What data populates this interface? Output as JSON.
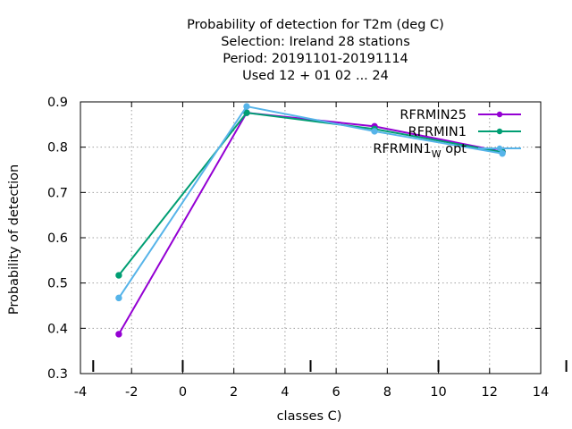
{
  "chart_data": {
    "type": "line",
    "title_lines": [
      "Probability of detection  for T2m (deg C)",
      "Selection: Ireland     28 stations",
      "Period: 20191101-20191114",
      "Used  12 + 01 02 ... 24"
    ],
    "xlabel": "classes C)",
    "ylabel": "Probability of detection",
    "xlim": [
      -4,
      14
    ],
    "ylim": [
      0.3,
      0.9
    ],
    "xticks": [
      -4,
      -2,
      0,
      2,
      4,
      6,
      8,
      10,
      12,
      14
    ],
    "yticks": [
      0.3,
      0.4,
      0.5,
      0.6,
      0.7,
      0.8,
      0.9
    ],
    "grid": true,
    "legend_position": "top-right",
    "series": [
      {
        "name": "RFRMIN25",
        "color": "#9400d3",
        "x": [
          -2.5,
          2.5,
          7.5,
          12.5
        ],
        "values": [
          0.387,
          0.876,
          0.846,
          0.79
        ]
      },
      {
        "name": "RFRMIN1",
        "color": "#009e73",
        "x": [
          -2.5,
          2.5,
          7.5,
          12.5
        ],
        "values": [
          0.517,
          0.876,
          0.84,
          0.789
        ]
      },
      {
        "name": "RFRMIN1",
        "name_subscript": "W",
        "name_suffix": "opt",
        "color": "#56b4e9",
        "x": [
          -2.5,
          2.5,
          7.5,
          12.5
        ],
        "values": [
          0.467,
          0.89,
          0.835,
          0.786
        ]
      }
    ],
    "extra_x_marks": [
      5,
      15
    ]
  }
}
